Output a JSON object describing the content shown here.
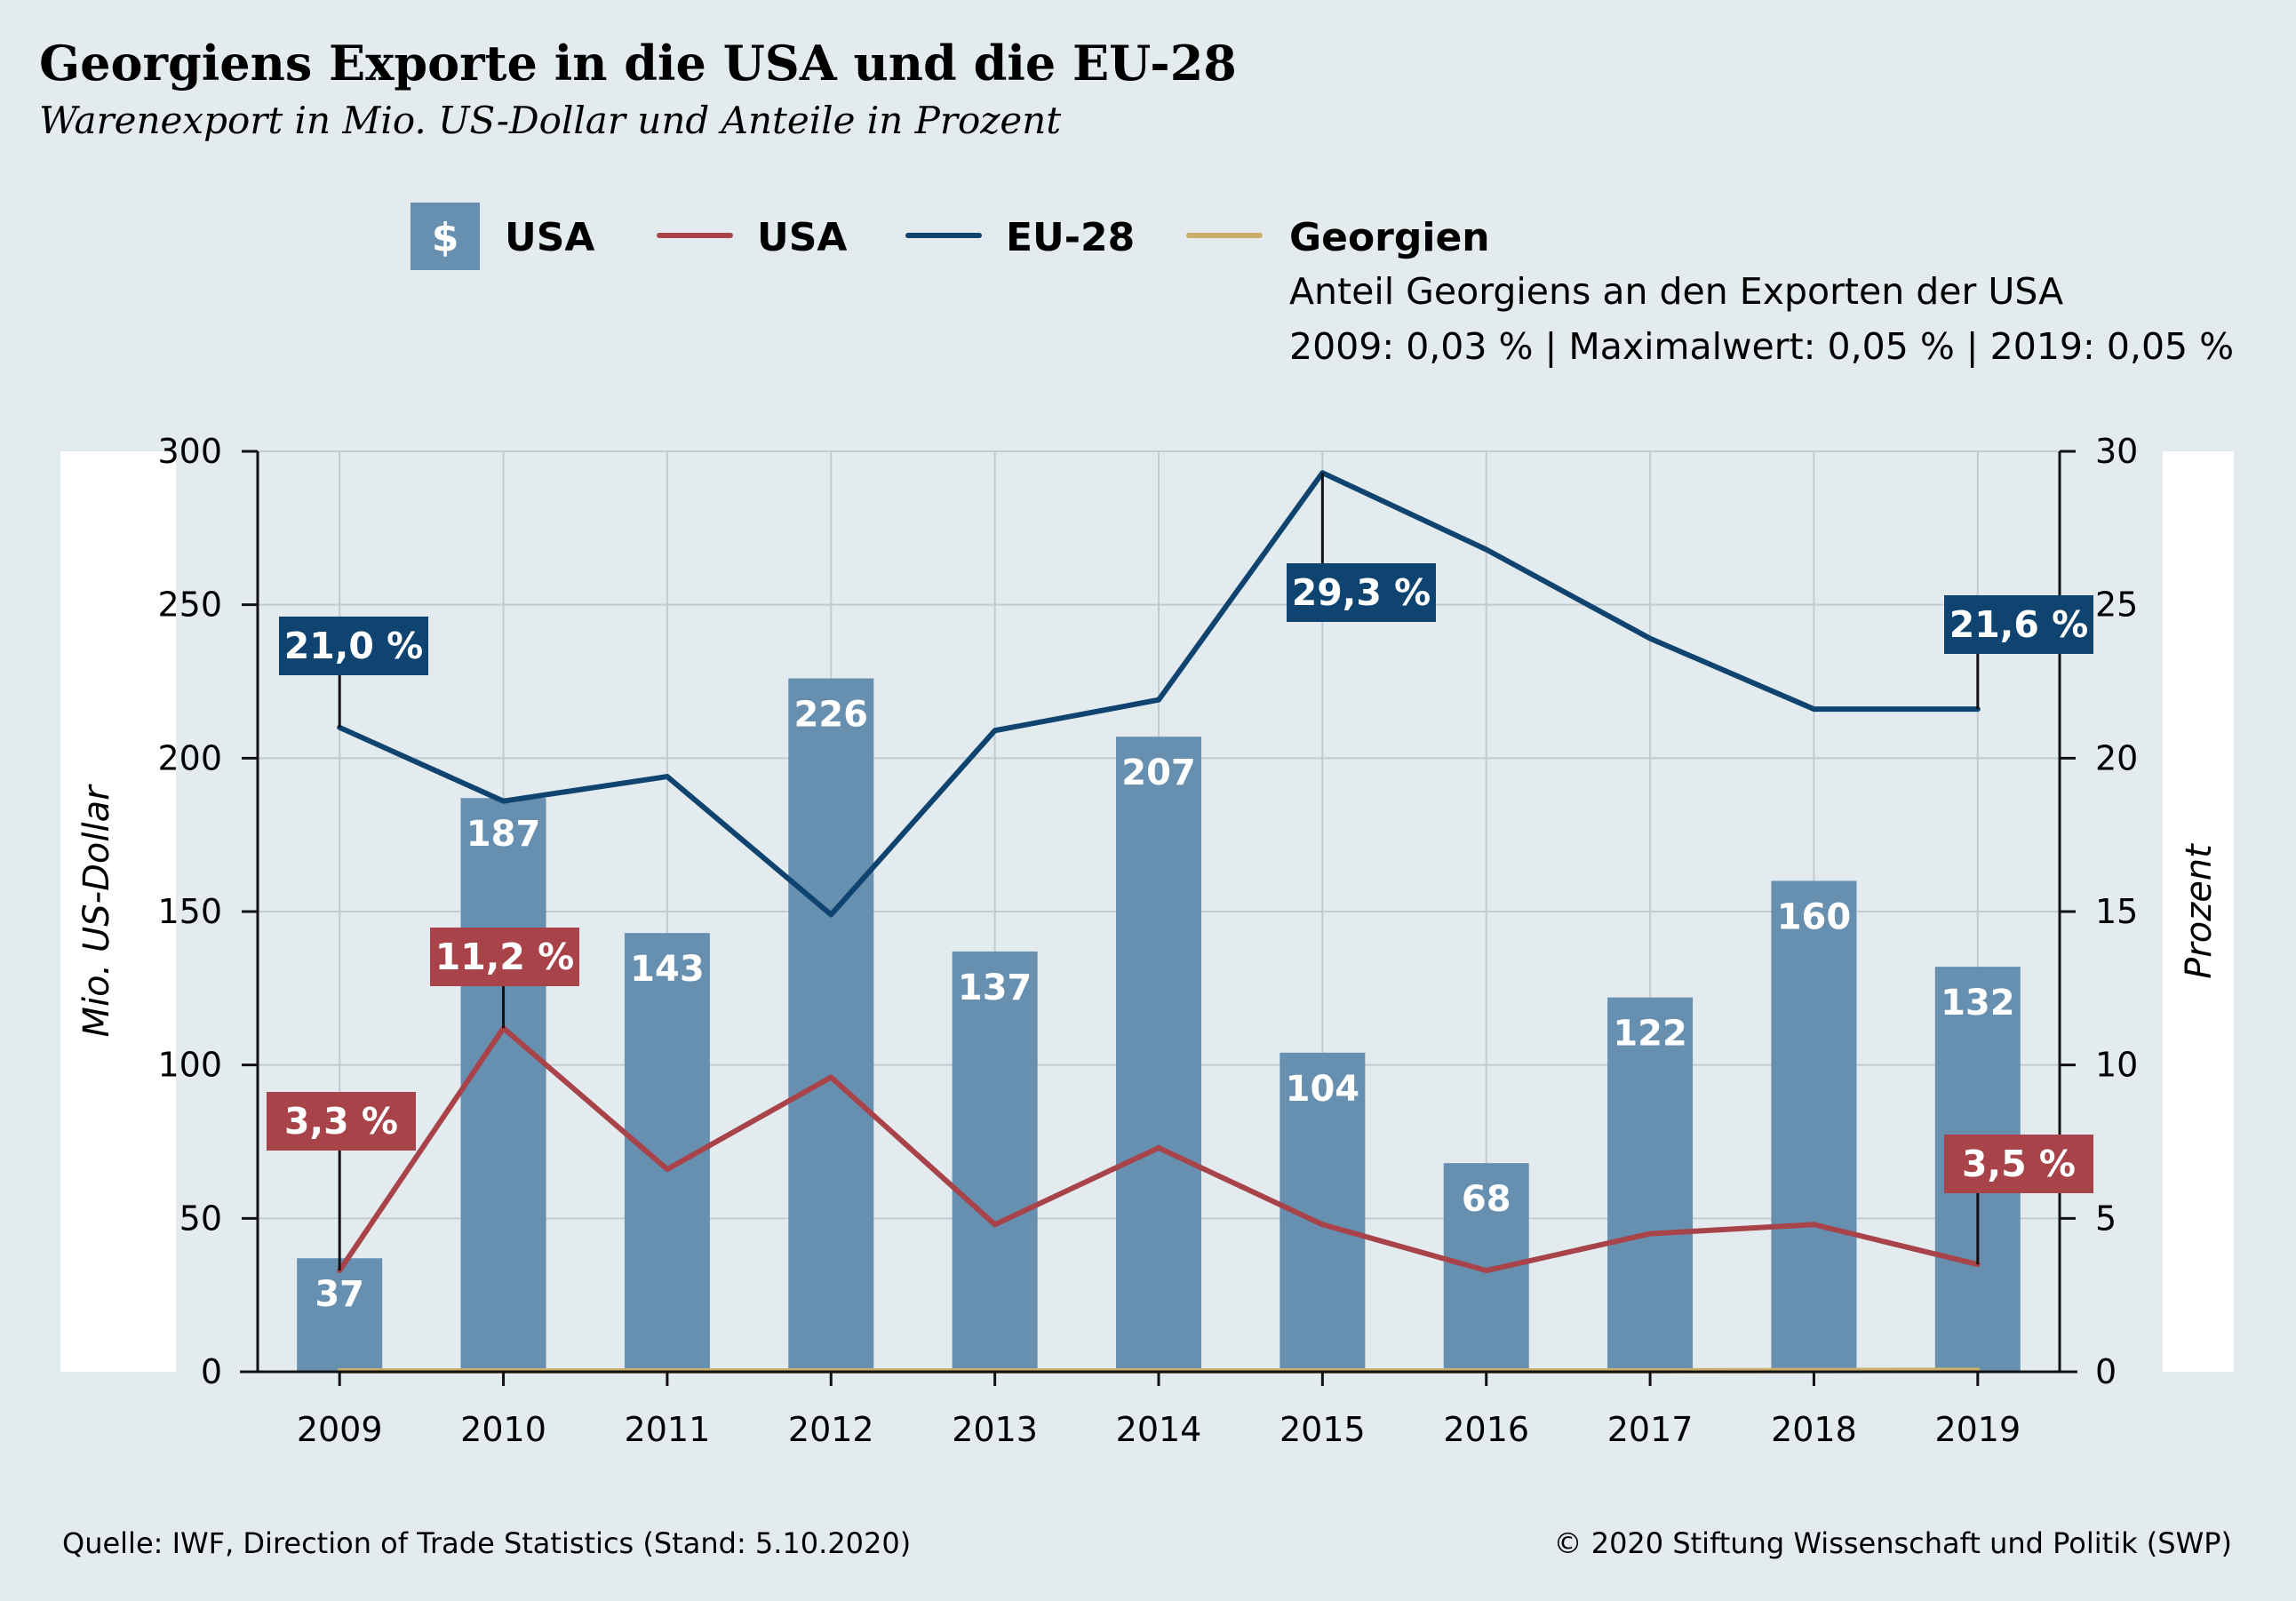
{
  "title": "Georgiens Exporte in die USA und die EU-28",
  "subtitle": "Warenexport in Mio. US-Dollar und Anteile in Prozent",
  "legend": {
    "bar_icon": "dollar-icon",
    "bar_icon_text": "$",
    "bar_label": "USA",
    "usa_line_label": "USA",
    "eu_line_label": "EU-28",
    "georgia_line_label": "Georgien",
    "note_line1": "Anteil Georgiens an den Exporten der USA",
    "note_line2": "2009: 0,03 % | Maximalwert: 0,05 % | 2019: 0,05 %"
  },
  "axes": {
    "left_label": "Mio. US-Dollar",
    "right_label": "Prozent",
    "left_ticks": [
      "0",
      "50",
      "100",
      "150",
      "200",
      "250",
      "300"
    ],
    "right_ticks": [
      "0",
      "5",
      "10",
      "15",
      "20",
      "25",
      "30"
    ]
  },
  "colors": {
    "bar": "#678fb0",
    "usa_line": "#a8434a",
    "eu_line": "#0f4470",
    "georgia_line": "#c9ae6c",
    "background": "#e3ebef",
    "grid": "#c3cbd0"
  },
  "chart_data": {
    "type": "bar",
    "categories": [
      "2009",
      "2010",
      "2011",
      "2012",
      "2013",
      "2014",
      "2015",
      "2016",
      "2017",
      "2018",
      "2019"
    ],
    "ylim": [
      0,
      300
    ],
    "y2lim": [
      0,
      30
    ],
    "grid": true,
    "legend_position": "top",
    "series": [
      {
        "name": "USA",
        "type": "bar",
        "axis": "left",
        "values": [
          37,
          187,
          143,
          226,
          137,
          207,
          104,
          68,
          122,
          160,
          132
        ],
        "labels": [
          "37",
          "187",
          "143",
          "226",
          "137",
          "207",
          "104",
          "68",
          "122",
          "160",
          "132"
        ]
      },
      {
        "name": "USA",
        "type": "line",
        "axis": "right",
        "values": [
          3.3,
          11.2,
          6.6,
          9.6,
          4.8,
          7.3,
          4.8,
          3.3,
          4.5,
          4.8,
          3.5
        ]
      },
      {
        "name": "EU-28",
        "type": "line",
        "axis": "right",
        "values": [
          21.0,
          18.6,
          19.4,
          14.9,
          20.9,
          21.9,
          29.3,
          26.8,
          23.9,
          21.6,
          21.6
        ]
      },
      {
        "name": "Georgien",
        "type": "line",
        "axis": "right",
        "values": [
          0.03,
          0.03,
          0.03,
          0.03,
          0.03,
          0.03,
          0.03,
          0.03,
          0.03,
          0.04,
          0.05
        ]
      }
    ],
    "annotations": [
      {
        "series": "EU-28",
        "category": "2009",
        "text": "21,0 %"
      },
      {
        "series": "EU-28",
        "category": "2015",
        "text": "29,3 %"
      },
      {
        "series": "EU-28",
        "category": "2019",
        "text": "21,6 %"
      },
      {
        "series": "USA",
        "category": "2009",
        "text": "3,3 %"
      },
      {
        "series": "USA",
        "category": "2010",
        "text": "11,2 %"
      },
      {
        "series": "USA",
        "category": "2019",
        "text": "3,5 %"
      }
    ]
  },
  "footer": {
    "source": "Quelle: IWF, Direction of Trade Statistics (Stand: 5.10.2020)",
    "copyright": "© 2020 Stiftung Wissenschaft und Politik (SWP)"
  }
}
